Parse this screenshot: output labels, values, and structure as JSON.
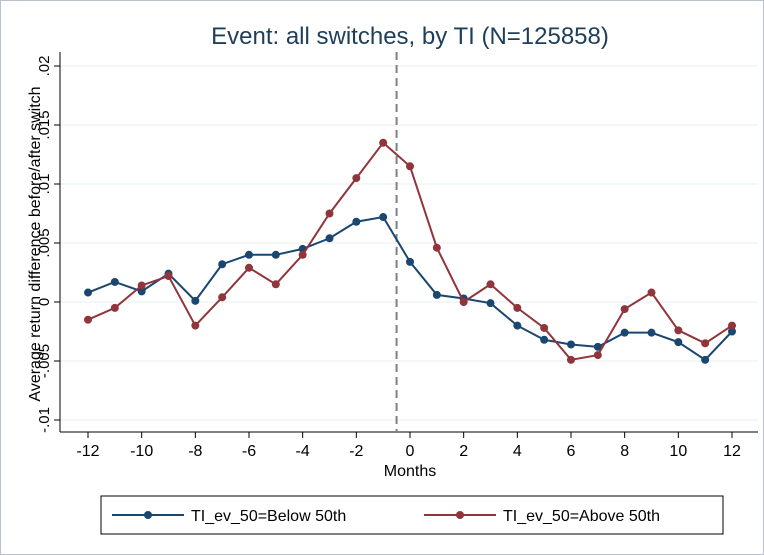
{
  "chart_data": {
    "type": "line",
    "title": "Event: all switches, by TI (N=125858)",
    "xlabel": "Months",
    "ylabel": "Average return difference before/after switch",
    "xlim": [
      -12,
      12
    ],
    "ylim": [
      -0.01,
      0.02
    ],
    "xticks": [
      -12,
      -10,
      -8,
      -6,
      -4,
      -2,
      0,
      2,
      4,
      6,
      8,
      10,
      12
    ],
    "xtick_labels": [
      "-12",
      "-10",
      "-8",
      "-6",
      "-4",
      "-2",
      "0",
      "2",
      "4",
      "6",
      "8",
      "10",
      "12"
    ],
    "yticks": [
      -0.01,
      -0.005,
      0,
      0.005,
      0.01,
      0.015,
      0.02
    ],
    "ytick_labels": [
      "-.01",
      "-.005",
      "0",
      ".005",
      ".01",
      ".015",
      ".02"
    ],
    "event_line_x": -0.5,
    "grid": true,
    "legend_position": "bottom",
    "x": [
      -12,
      -11,
      -10,
      -9,
      -8,
      -7,
      -6,
      -5,
      -4,
      -3,
      -2,
      -1,
      0,
      1,
      2,
      3,
      4,
      5,
      6,
      7,
      8,
      9,
      10,
      11,
      12
    ],
    "series": [
      {
        "name": "TI_ev_50=Below 50th",
        "color": "#1a476f",
        "values": [
          0.0008,
          0.0017,
          0.0009,
          0.0024,
          0.0001,
          0.0032,
          0.004,
          0.004,
          0.0045,
          0.0054,
          0.0068,
          0.0072,
          0.0034,
          0.0006,
          0.0003,
          -0.0001,
          -0.002,
          -0.0032,
          -0.0036,
          -0.0038,
          -0.0026,
          -0.0026,
          -0.0034,
          -0.0049,
          -0.0025
        ]
      },
      {
        "name": "TI_ev_50=Above 50th",
        "color": "#90353b",
        "values": [
          -0.0015,
          -0.0005,
          0.0014,
          0.0022,
          -0.002,
          0.0004,
          0.0029,
          0.0015,
          0.004,
          0.0075,
          0.0105,
          0.0135,
          0.0115,
          0.0046,
          0.0,
          0.0015,
          -0.0005,
          -0.0022,
          -0.0049,
          -0.0045,
          -0.0006,
          0.0008,
          -0.0024,
          -0.0035,
          -0.002
        ]
      }
    ]
  }
}
